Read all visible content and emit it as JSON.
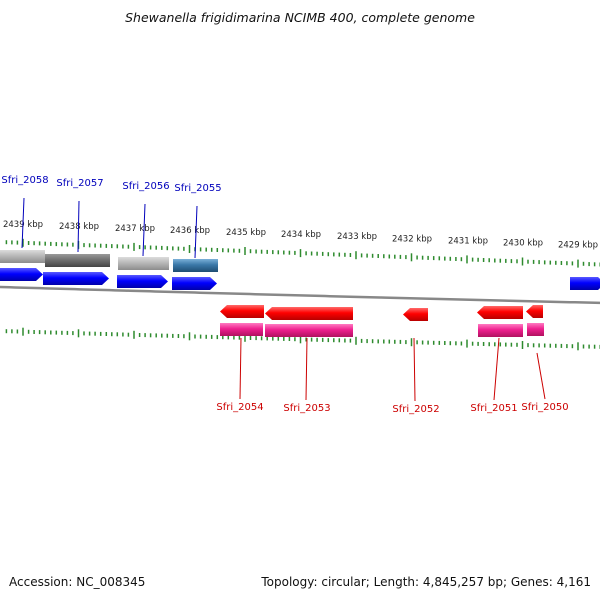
{
  "title": "Shewanella frigidimarina NCIMB 400, complete genome",
  "footer": {
    "accession": "Accession: NC_008345",
    "summary": "Topology: circular; Length: 4,845,257 bp; Genes: 4,161"
  },
  "colors": {
    "backbone": "#888888",
    "tick": "#2e8b2e",
    "forward_label": "#0000bb",
    "reverse_label": "#cc0000",
    "cds_forward": "#0000ff",
    "cds_reverse": "#ff0000",
    "gene_reverse": "#ee1f8e",
    "gene_gray_light": "#b8b8b8",
    "gene_gray_dark": "#707070",
    "gene_steel": "#3a78a8"
  },
  "scale_labels": [
    "2439 kbp",
    "2438 kbp",
    "2437 kbp",
    "2436 kbp",
    "2435 kbp",
    "2434 kbp",
    "2433 kbp",
    "2432 kbp",
    "2431 kbp",
    "2430 kbp",
    "2429 kbp"
  ],
  "forward_gene_labels": [
    "Sfri_2058",
    "Sfri_2057",
    "Sfri_2056",
    "Sfri_2055"
  ],
  "reverse_gene_labels": [
    "Sfri_2054",
    "Sfri_2053",
    "Sfri_2052",
    "Sfri_2051",
    "Sfri_2050"
  ]
}
